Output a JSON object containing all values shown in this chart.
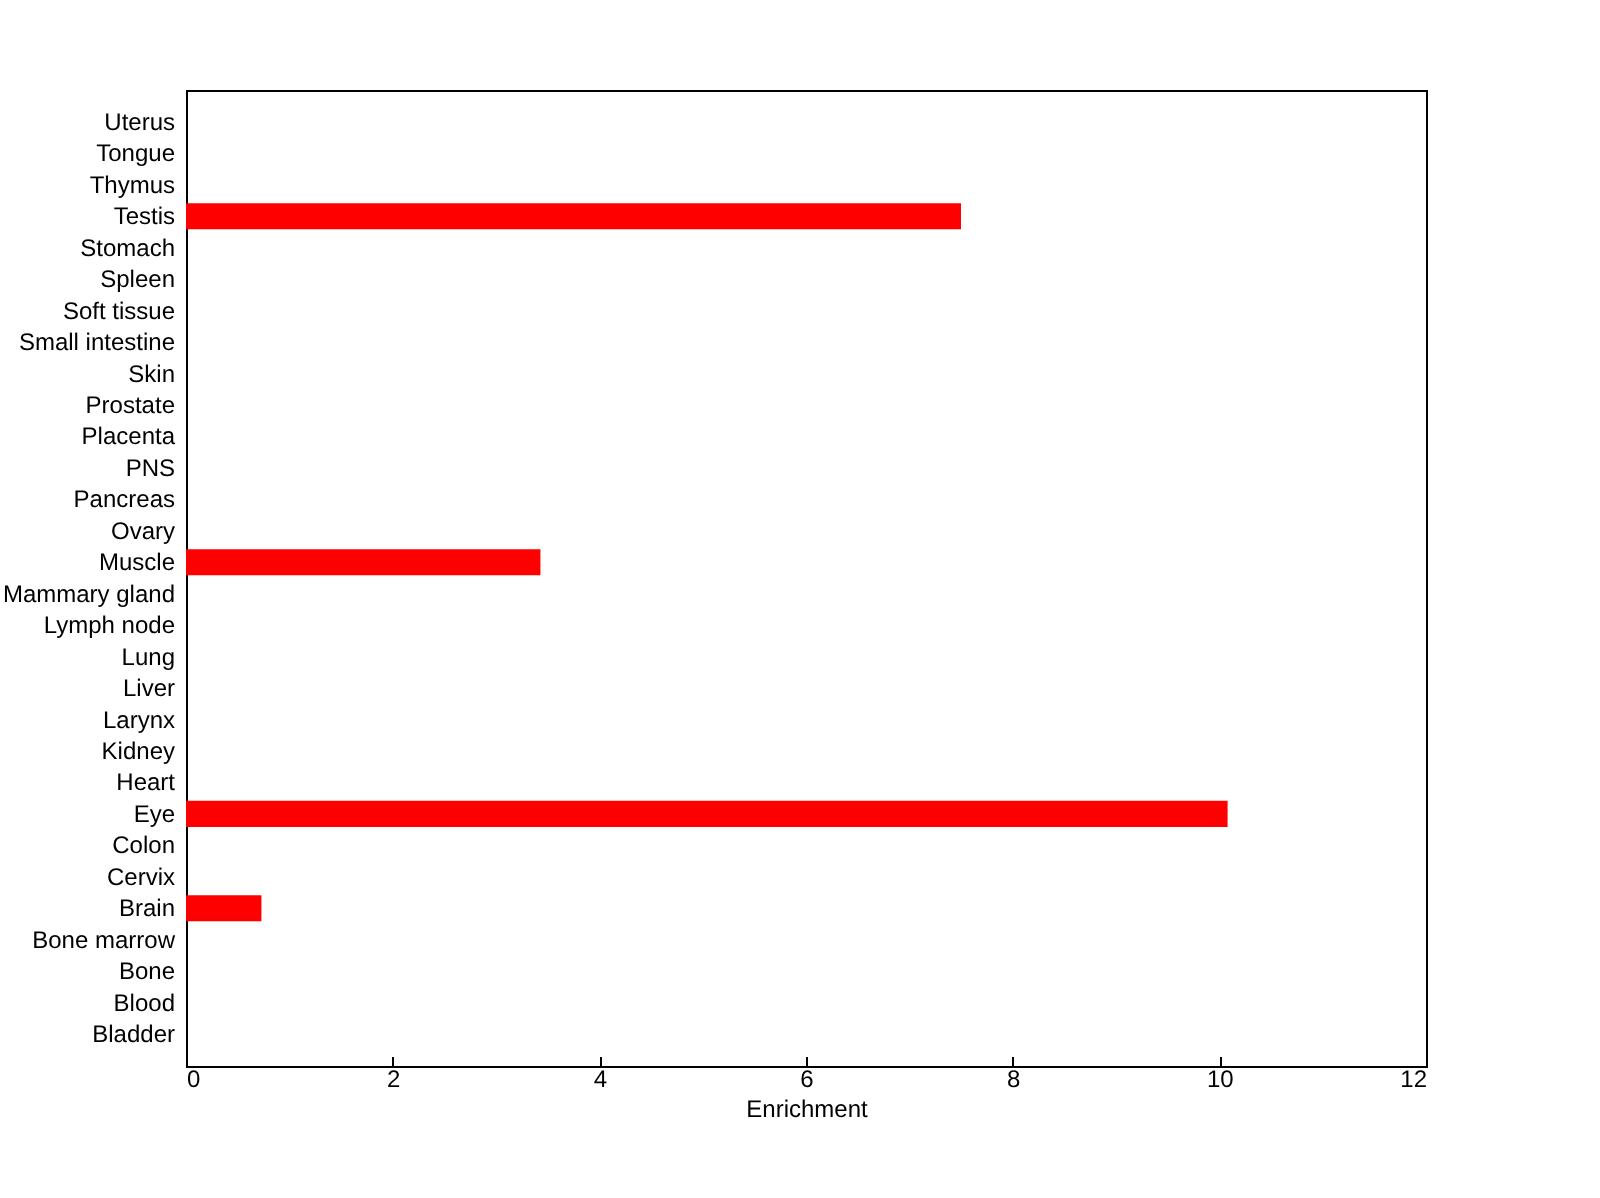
{
  "chart_data": {
    "type": "bar",
    "orientation": "horizontal",
    "xlabel": "Enrichment",
    "categories": [
      "Uterus",
      "Tongue",
      "Thymus",
      "Testis",
      "Stomach",
      "Spleen",
      "Soft tissue",
      "Small intestine",
      "Skin",
      "Prostate",
      "Placenta",
      "PNS",
      "Pancreas",
      "Ovary",
      "Muscle",
      "Mammary gland",
      "Lymph node",
      "Lung",
      "Liver",
      "Larynx",
      "Kidney",
      "Heart",
      "Eye",
      "Colon",
      "Cervix",
      "Brain",
      "Bone marrow",
      "Bone",
      "Blood",
      "Bladder"
    ],
    "values": [
      0,
      0,
      0,
      7.5,
      0,
      0,
      0,
      0,
      0,
      0,
      0,
      0,
      0,
      0,
      3.43,
      0,
      0,
      0,
      0,
      0,
      0,
      0,
      10.08,
      0,
      0,
      0.73,
      0,
      0,
      0,
      0
    ],
    "color": "#ff0000",
    "xlim": [
      0,
      12
    ],
    "xticks": [
      0,
      2,
      4,
      6,
      8,
      10,
      12
    ],
    "grid": false
  }
}
